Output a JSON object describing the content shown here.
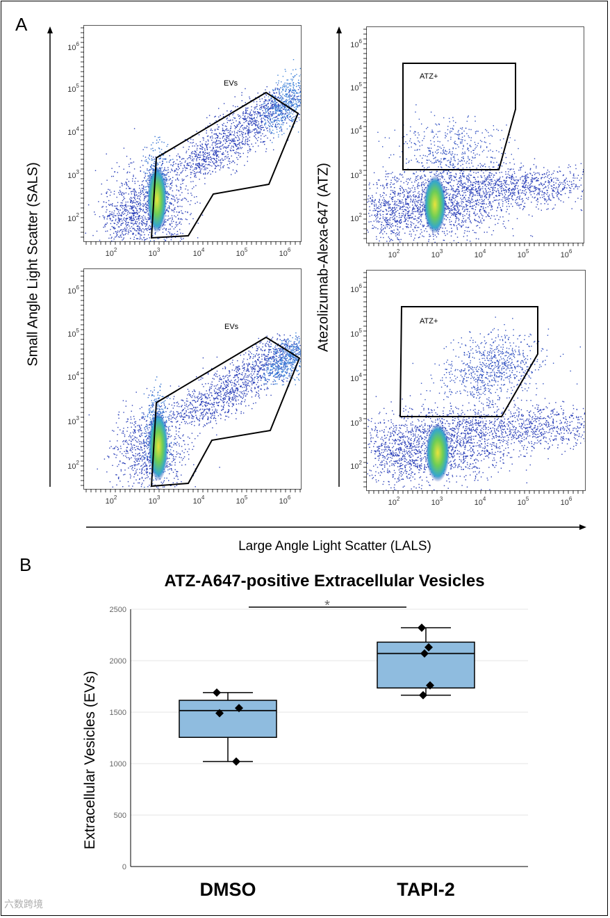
{
  "panels": {
    "a_label": "A",
    "b_label": "B"
  },
  "flow": {
    "y_axis_left": "Small Angle Light Scatter (SALS)",
    "y_axis_right": "Atezolizumab-Alexa-647 (ATZ)",
    "x_axis": "Large Angle Light Scatter (LALS)",
    "tick_exponents": [
      "2",
      "3",
      "4",
      "5",
      "6"
    ],
    "tick_base": "10",
    "plots": [
      {
        "id": "tl",
        "gate": "EVs"
      },
      {
        "id": "tr",
        "gate": "ATZ+"
      },
      {
        "id": "bl",
        "gate": "EVs"
      },
      {
        "id": "br",
        "gate": "ATZ+"
      }
    ]
  },
  "chart_data": {
    "type": "box",
    "title": "ATZ-A647-positive Extracellular Vesicles",
    "ylabel": "Extracellular Vesicles (EVs)",
    "xlabel": "",
    "ylim": [
      0,
      2500
    ],
    "yticks": [
      0,
      500,
      1000,
      1500,
      2000,
      2500
    ],
    "categories": [
      "DMSO",
      "TAPI-2"
    ],
    "series": [
      {
        "name": "DMSO",
        "whisker_low": 1020,
        "q1": 1255,
        "median": 1515,
        "q3": 1615,
        "whisker_high": 1690,
        "points": [
          1690,
          1490,
          1540,
          1020
        ]
      },
      {
        "name": "TAPI-2",
        "whisker_low": 1665,
        "q1": 1735,
        "median": 2070,
        "q3": 2180,
        "whisker_high": 2320,
        "points": [
          2320,
          2130,
          2070,
          1760,
          1665
        ]
      }
    ],
    "significance": {
      "between": [
        "DMSO",
        "TAPI-2"
      ],
      "label": "*"
    },
    "colors": {
      "box": "#8fbcdf",
      "edge": "#000000",
      "point": "#000000",
      "grid": "#e6e6e6"
    }
  },
  "watermark": "六数跨境"
}
